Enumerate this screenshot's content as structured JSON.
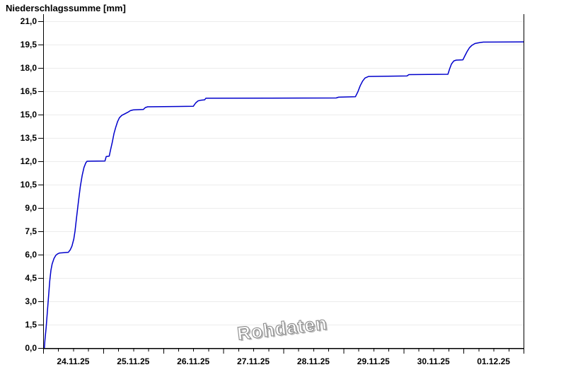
{
  "chart": {
    "title": "Niederschlagssumme [mm]",
    "watermark": "Rohdaten"
  },
  "chart_data": {
    "type": "line",
    "title": "Niederschlagssumme [mm]",
    "ylabel": "Niederschlagssumme [mm]",
    "xlabel": "",
    "ylim": [
      0,
      21
    ],
    "y_tick_step": 1.5,
    "y_tick_labels": [
      "0,0",
      "1,5",
      "3,0",
      "4,5",
      "6,0",
      "7,5",
      "9,0",
      "10,5",
      "12,0",
      "13,5",
      "15,0",
      "16,5",
      "18,0",
      "19,5",
      "21,0"
    ],
    "x_day_labels": [
      "24.11.25",
      "25.11.25",
      "26.11.25",
      "27.11.25",
      "28.11.25",
      "29.11.25",
      "30.11.25",
      "01.12.25"
    ],
    "xlim_days": [
      0,
      8
    ],
    "x_major_tick_days": 1,
    "x_minor_tick_days": 0.25,
    "grid": "horizontal-only",
    "legend": "none",
    "watermark": "Rohdaten",
    "colors": {
      "line": "#0000cc",
      "grid": "#ececec",
      "axis": "#000000",
      "tick_text": "#000000",
      "watermark_stroke": "#8a8a8a",
      "watermark_fill": "#ffffff",
      "watermark_shadow": "#bdbdbd"
    },
    "series": [
      {
        "name": "Niederschlagssumme",
        "units": "mm",
        "points_t_days_vs_mm": [
          [
            0.02,
            0.0
          ],
          [
            0.03,
            0.5
          ],
          [
            0.05,
            1.3
          ],
          [
            0.07,
            2.3
          ],
          [
            0.09,
            3.3
          ],
          [
            0.11,
            4.3
          ],
          [
            0.13,
            5.0
          ],
          [
            0.15,
            5.4
          ],
          [
            0.18,
            5.75
          ],
          [
            0.21,
            5.95
          ],
          [
            0.24,
            6.05
          ],
          [
            0.27,
            6.1
          ],
          [
            0.42,
            6.15
          ],
          [
            0.45,
            6.3
          ],
          [
            0.48,
            6.55
          ],
          [
            0.51,
            7.0
          ],
          [
            0.53,
            7.5
          ],
          [
            0.56,
            8.5
          ],
          [
            0.59,
            9.5
          ],
          [
            0.62,
            10.4
          ],
          [
            0.65,
            11.1
          ],
          [
            0.68,
            11.6
          ],
          [
            0.71,
            11.9
          ],
          [
            0.73,
            12.0
          ],
          [
            1.03,
            12.02
          ],
          [
            1.05,
            12.3
          ],
          [
            1.1,
            12.33
          ],
          [
            1.12,
            12.7
          ],
          [
            1.15,
            13.2
          ],
          [
            1.18,
            13.8
          ],
          [
            1.21,
            14.2
          ],
          [
            1.24,
            14.55
          ],
          [
            1.27,
            14.8
          ],
          [
            1.31,
            14.95
          ],
          [
            1.36,
            15.05
          ],
          [
            1.41,
            15.15
          ],
          [
            1.45,
            15.25
          ],
          [
            1.5,
            15.3
          ],
          [
            1.67,
            15.33
          ],
          [
            1.7,
            15.45
          ],
          [
            1.74,
            15.5
          ],
          [
            2.5,
            15.53
          ],
          [
            2.54,
            15.75
          ],
          [
            2.58,
            15.88
          ],
          [
            2.62,
            15.92
          ],
          [
            2.69,
            15.95
          ],
          [
            2.71,
            16.05
          ],
          [
            4.88,
            16.07
          ],
          [
            4.92,
            16.12
          ],
          [
            5.2,
            16.15
          ],
          [
            5.24,
            16.45
          ],
          [
            5.28,
            16.85
          ],
          [
            5.32,
            17.15
          ],
          [
            5.36,
            17.35
          ],
          [
            5.42,
            17.45
          ],
          [
            6.06,
            17.48
          ],
          [
            6.09,
            17.57
          ],
          [
            6.74,
            17.59
          ],
          [
            6.77,
            17.95
          ],
          [
            6.8,
            18.25
          ],
          [
            6.84,
            18.45
          ],
          [
            6.88,
            18.5
          ],
          [
            6.99,
            18.52
          ],
          [
            7.02,
            18.75
          ],
          [
            7.06,
            19.05
          ],
          [
            7.1,
            19.3
          ],
          [
            7.14,
            19.45
          ],
          [
            7.19,
            19.57
          ],
          [
            7.26,
            19.62
          ],
          [
            7.33,
            19.66
          ],
          [
            8.0,
            19.67
          ]
        ]
      }
    ]
  }
}
